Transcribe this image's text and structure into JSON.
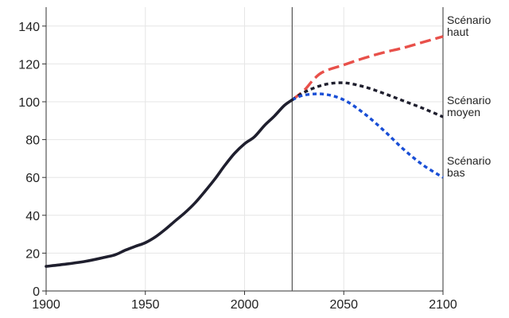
{
  "chart_data": {
    "type": "line",
    "title": "",
    "xlabel": "",
    "ylabel": "",
    "xlim": [
      1900,
      2100
    ],
    "ylim": [
      0,
      150
    ],
    "x_ticks": [
      "1900",
      "1950",
      "2000",
      "2050",
      "2100"
    ],
    "y_ticks": [
      "0",
      "20",
      "40",
      "60",
      "80",
      "100",
      "120",
      "140"
    ],
    "grid": true,
    "reference_line_x": 2024,
    "series": [
      {
        "key": "historique",
        "color": "#1f1f2e",
        "style": "solid",
        "points": [
          [
            1900,
            13
          ],
          [
            1910,
            14.2
          ],
          [
            1920,
            15.7
          ],
          [
            1930,
            17.9
          ],
          [
            1935,
            19.2
          ],
          [
            1940,
            21.6
          ],
          [
            1945,
            23.6
          ],
          [
            1950,
            25.5
          ],
          [
            1955,
            28.5
          ],
          [
            1960,
            32.5
          ],
          [
            1965,
            37
          ],
          [
            1970,
            41.4
          ],
          [
            1975,
            46.5
          ],
          [
            1980,
            52.6
          ],
          [
            1985,
            59.1
          ],
          [
            1990,
            66.3
          ],
          [
            1995,
            72.8
          ],
          [
            2000,
            77.8
          ],
          [
            2005,
            81.5
          ],
          [
            2010,
            87.4
          ],
          [
            2015,
            92.4
          ],
          [
            2020,
            98
          ],
          [
            2024,
            101
          ]
        ]
      },
      {
        "key": "haut",
        "name_line1": "Scénario",
        "name_line2": "haut",
        "color": "#e8504a",
        "style": "dashed",
        "points": [
          [
            2024,
            101
          ],
          [
            2030,
            106
          ],
          [
            2035,
            112
          ],
          [
            2040,
            116
          ],
          [
            2050,
            119.5
          ],
          [
            2060,
            123
          ],
          [
            2070,
            126
          ],
          [
            2080,
            128.5
          ],
          [
            2090,
            131.5
          ],
          [
            2100,
            134.5
          ]
        ]
      },
      {
        "key": "moyen",
        "name_line1": "Scénario",
        "name_line2": "moyen",
        "color": "#1f1f2e",
        "style": "dotted",
        "points": [
          [
            2024,
            101
          ],
          [
            2030,
            105
          ],
          [
            2040,
            109
          ],
          [
            2050,
            110
          ],
          [
            2060,
            108
          ],
          [
            2070,
            104.5
          ],
          [
            2080,
            100.5
          ],
          [
            2090,
            96.5
          ],
          [
            2100,
            92
          ]
        ]
      },
      {
        "key": "bas",
        "name_line1": "Scénario",
        "name_line2": "bas",
        "color": "#1a4fd6",
        "style": "dotted",
        "points": [
          [
            2024,
            101
          ],
          [
            2030,
            103.5
          ],
          [
            2040,
            104
          ],
          [
            2050,
            101
          ],
          [
            2060,
            94
          ],
          [
            2070,
            85
          ],
          [
            2080,
            75
          ],
          [
            2090,
            66.5
          ],
          [
            2100,
            60
          ]
        ]
      }
    ]
  }
}
